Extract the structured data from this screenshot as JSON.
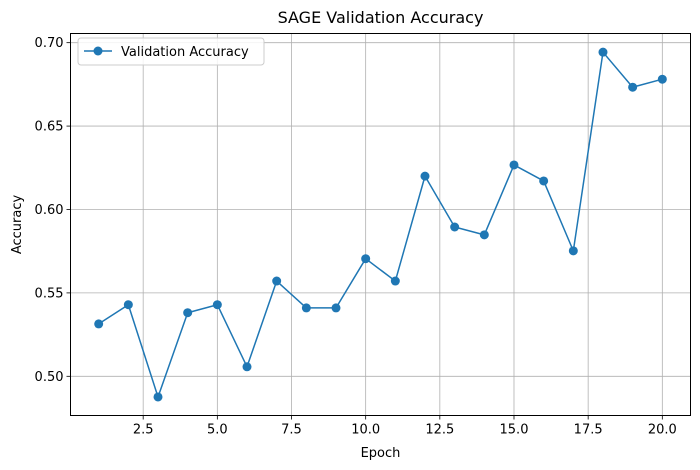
{
  "chart_data": {
    "type": "line",
    "title": "SAGE Validation Accuracy",
    "xlabel": "Epoch",
    "ylabel": "Accuracy",
    "xlim": [
      0.05,
      20.95
    ],
    "ylim": [
      0.4765,
      0.7055
    ],
    "xticks": [
      2.5,
      5.0,
      7.5,
      10.0,
      12.5,
      15.0,
      17.5,
      20.0
    ],
    "xtick_labels": [
      "2.5",
      "5.0",
      "7.5",
      "10.0",
      "12.5",
      "15.0",
      "17.5",
      "20.0"
    ],
    "yticks": [
      0.5,
      0.55,
      0.6,
      0.65,
      0.7
    ],
    "ytick_labels": [
      "0.50",
      "0.55",
      "0.60",
      "0.65",
      "0.70"
    ],
    "grid": true,
    "legend_position": "top-left",
    "series": [
      {
        "name": "Validation Accuracy",
        "color": "#1f77b4",
        "marker": "circle",
        "x": [
          1,
          2,
          3,
          4,
          5,
          6,
          7,
          8,
          9,
          10,
          11,
          12,
          13,
          14,
          15,
          16,
          17,
          18,
          19,
          20
        ],
        "y": [
          0.5314,
          0.5429,
          0.4876,
          0.5381,
          0.5429,
          0.5057,
          0.5571,
          0.541,
          0.541,
          0.5705,
          0.5571,
          0.62,
          0.5895,
          0.5848,
          0.6267,
          0.6171,
          0.5752,
          0.6943,
          0.6733,
          0.6781
        ]
      }
    ]
  }
}
